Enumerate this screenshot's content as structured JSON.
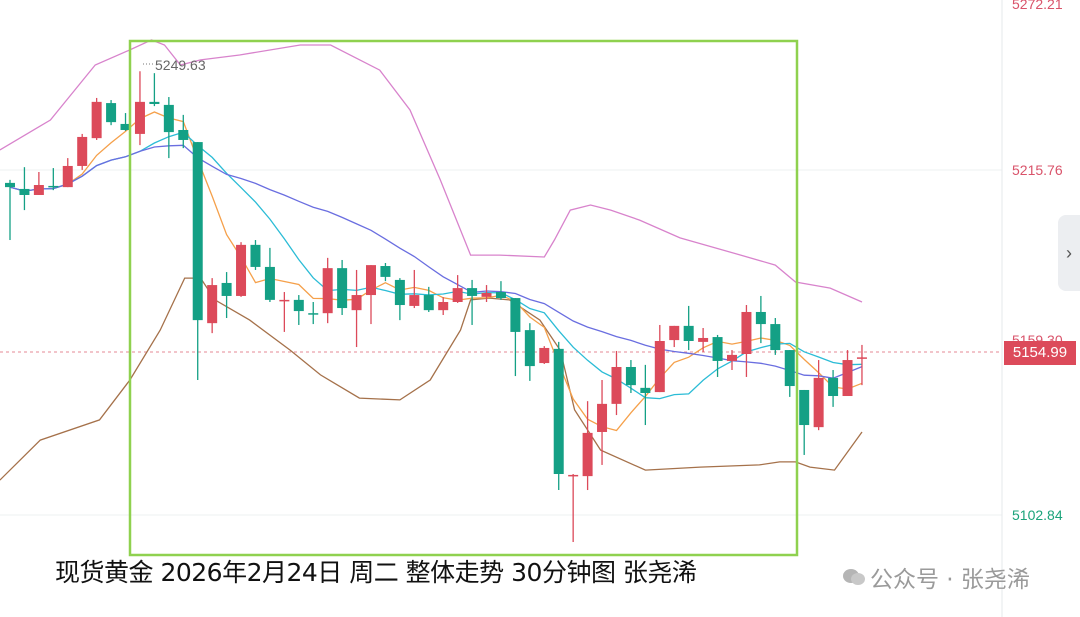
{
  "chart_data": {
    "type": "candlestick",
    "title": "现货黄金 2026年2月24日 周二 整体走势 30分钟图 张尧浠",
    "timeframe": "30分钟",
    "y_axis": {
      "range": [
        5083.0,
        5273.2
      ],
      "tick_labels": [
        "5272.21",
        "5215.76",
        "5159.30",
        "5102.84"
      ],
      "tick_values": [
        5272.21,
        5215.76,
        5159.3,
        5102.84
      ]
    },
    "last_price": "5154.99",
    "max_marker": "5249.63",
    "candles_ohlc": [
      [
        5212.7,
        5213.7,
        5193.8,
        5211.3
      ],
      [
        5210.7,
        5217.9,
        5203.7,
        5208.7
      ],
      [
        5208.7,
        5216.3,
        5208.7,
        5212.0
      ],
      [
        5211.7,
        5217.6,
        5210.3,
        5211.3
      ],
      [
        5211.3,
        5220.9,
        5211.3,
        5218.3
      ],
      [
        5218.3,
        5228.9,
        5217.0,
        5227.9
      ],
      [
        5227.5,
        5240.8,
        5226.9,
        5239.5
      ],
      [
        5239.1,
        5240.1,
        5231.8,
        5232.8
      ],
      [
        5232.2,
        5235.8,
        5229.9,
        5230.2
      ],
      [
        5228.9,
        5249.63,
        5225.2,
        5239.5
      ],
      [
        5239.5,
        5249.0,
        5238.1,
        5238.8
      ],
      [
        5238.5,
        5241.1,
        5220.9,
        5229.5
      ],
      [
        5230.2,
        5235.2,
        5224.2,
        5226.9
      ],
      [
        5226.2,
        5226.2,
        5147.5,
        5167.3
      ],
      [
        5166.3,
        5181.2,
        5163.0,
        5178.9
      ],
      [
        5179.6,
        5183.2,
        5168.0,
        5175.3
      ],
      [
        5175.3,
        5193.1,
        5175.0,
        5192.2
      ],
      [
        5192.2,
        5193.8,
        5183.9,
        5184.9
      ],
      [
        5184.9,
        5191.2,
        5173.3,
        5174.0
      ],
      [
        5173.6,
        5176.6,
        5163.4,
        5174.0
      ],
      [
        5174.0,
        5175.6,
        5165.7,
        5170.3
      ],
      [
        5169.6,
        5173.3,
        5166.0,
        5169.3
      ],
      [
        5169.6,
        5187.9,
        5166.3,
        5184.5
      ],
      [
        5184.5,
        5187.2,
        5169.0,
        5171.3
      ],
      [
        5170.6,
        5183.9,
        5158.4,
        5175.6
      ],
      [
        5175.6,
        5185.5,
        5166.0,
        5185.5
      ],
      [
        5185.2,
        5186.2,
        5180.2,
        5181.6
      ],
      [
        5180.6,
        5181.2,
        5167.3,
        5172.3
      ],
      [
        5172.0,
        5183.9,
        5171.3,
        5175.6
      ],
      [
        5175.6,
        5178.3,
        5170.0,
        5170.6
      ],
      [
        5170.6,
        5174.9,
        5169.0,
        5173.3
      ],
      [
        5173.3,
        5182.2,
        5173.0,
        5177.9
      ],
      [
        5177.9,
        5180.6,
        5165.7,
        5175.3
      ],
      [
        5175.0,
        5178.9,
        5173.3,
        5176.3
      ],
      [
        5176.6,
        5180.2,
        5174.0,
        5174.6
      ],
      [
        5174.6,
        5174.6,
        5148.8,
        5163.4
      ],
      [
        5164.0,
        5166.3,
        5147.2,
        5152.1
      ],
      [
        5153.1,
        5158.7,
        5152.8,
        5158.1
      ],
      [
        5157.8,
        5160.1,
        5111.1,
        5116.4
      ],
      [
        5115.7,
        5116.4,
        5093.9,
        5116.1
      ],
      [
        5115.7,
        5140.5,
        5111.1,
        5130.0
      ],
      [
        5130.3,
        5147.5,
        5119.4,
        5139.6
      ],
      [
        5139.6,
        5157.1,
        5135.9,
        5151.8
      ],
      [
        5151.8,
        5154.1,
        5143.2,
        5145.8
      ],
      [
        5144.9,
        5152.5,
        5132.6,
        5143.2
      ],
      [
        5143.5,
        5165.7,
        5143.5,
        5160.4
      ],
      [
        5160.7,
        5165.4,
        5158.4,
        5165.4
      ],
      [
        5165.4,
        5172.0,
        5157.4,
        5160.4
      ],
      [
        5160.1,
        5164.7,
        5156.8,
        5161.4
      ],
      [
        5161.7,
        5162.4,
        5148.5,
        5153.8
      ],
      [
        5153.8,
        5157.4,
        5150.8,
        5155.8
      ],
      [
        5156.1,
        5172.3,
        5148.5,
        5170.0
      ],
      [
        5170.0,
        5175.3,
        5159.7,
        5166.0
      ],
      [
        5166.0,
        5168.0,
        5155.8,
        5157.4
      ],
      [
        5157.4,
        5157.4,
        5141.9,
        5145.5
      ],
      [
        5144.2,
        5144.2,
        5122.7,
        5132.6
      ],
      [
        5131.9,
        5154.1,
        5130.9,
        5148.2
      ],
      [
        5148.2,
        5150.8,
        5138.6,
        5142.2
      ],
      [
        5142.2,
        5157.4,
        5142.2,
        5154.1
      ],
      [
        5154.8,
        5159.1,
        5145.8,
        5154.99
      ]
    ],
    "bollinger_upper": [
      [
        -0.7,
        5223.6
      ],
      [
        2.8,
        5233.5
      ],
      [
        5.9,
        5251.7
      ],
      [
        8.3,
        5256.7
      ],
      [
        9.8,
        5260.0
      ],
      [
        10.7,
        5258.3
      ],
      [
        11.8,
        5251.7
      ],
      [
        13.2,
        5253.4
      ],
      [
        15.9,
        5255.0
      ],
      [
        20.1,
        5258.3
      ],
      [
        22.2,
        5258.3
      ],
      [
        25.6,
        5250.0
      ],
      [
        27.7,
        5236.8
      ],
      [
        29.8,
        5213.7
      ],
      [
        31.9,
        5188.8
      ],
      [
        33.9,
        5188.8
      ],
      [
        37.0,
        5188.2
      ],
      [
        37.7,
        5193.8
      ],
      [
        38.8,
        5203.7
      ],
      [
        40.2,
        5205.4
      ],
      [
        41.6,
        5203.7
      ],
      [
        43.6,
        5200.4
      ],
      [
        46.4,
        5194.5
      ],
      [
        50.6,
        5188.8
      ],
      [
        53.0,
        5185.5
      ],
      [
        54.4,
        5179.9
      ],
      [
        56.8,
        5177.9
      ],
      [
        59,
        5173.3
      ]
    ],
    "bollinger_lower": [
      [
        -0.7,
        5114.4
      ],
      [
        2.1,
        5127.6
      ],
      [
        6.2,
        5134.3
      ],
      [
        8.3,
        5147.5
      ],
      [
        10.4,
        5164.0
      ],
      [
        12.1,
        5181.2
      ],
      [
        13.2,
        5181.2
      ],
      [
        14.2,
        5174.0
      ],
      [
        16.6,
        5167.3
      ],
      [
        19.4,
        5157.4
      ],
      [
        21.5,
        5149.2
      ],
      [
        24.2,
        5141.5
      ],
      [
        27.0,
        5140.9
      ],
      [
        29.1,
        5147.5
      ],
      [
        31.2,
        5164.0
      ],
      [
        31.9,
        5174.0
      ],
      [
        33.2,
        5174.6
      ],
      [
        34.6,
        5174.0
      ],
      [
        36.7,
        5167.3
      ],
      [
        38.1,
        5157.4
      ],
      [
        39.1,
        5137.6
      ],
      [
        40.9,
        5124.3
      ],
      [
        44.0,
        5117.7
      ],
      [
        47.8,
        5118.7
      ],
      [
        51.9,
        5119.4
      ],
      [
        53.3,
        5120.4
      ],
      [
        54.4,
        5120.4
      ],
      [
        55.4,
        5118.7
      ],
      [
        57.1,
        5117.7
      ],
      [
        59,
        5130.3
      ]
    ],
    "moving_averages": [
      {
        "name": "MA5",
        "period": 5,
        "color": "#f5a04a"
      },
      {
        "name": "MA10",
        "period": 10,
        "color": "#2bbcd6"
      },
      {
        "name": "MA20",
        "period": 20,
        "color": "#6a6ee0"
      }
    ],
    "colors": {
      "up": "#dc4a5a",
      "down": "#14a085",
      "upper": "#d883cc",
      "lower": "#a5714a",
      "box": "#8fd14f"
    }
  },
  "caption": "现货黄金 2026年2月24日 周二 整体走势 30分钟图 张尧浠",
  "watermark": "公众号 · 张尧浠",
  "side_tab_icon": "chevron-right-icon"
}
